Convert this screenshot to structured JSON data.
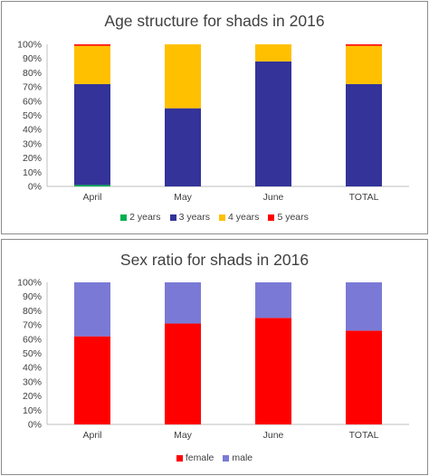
{
  "chart_data": [
    {
      "type": "bar",
      "stacked": true,
      "title": "Age structure for shads in 2016",
      "categories": [
        "April",
        "May",
        "June",
        "TOTAL"
      ],
      "ylim": [
        0,
        100
      ],
      "yticks": [
        "0%",
        "10%",
        "20%",
        "30%",
        "40%",
        "50%",
        "60%",
        "70%",
        "80%",
        "90%",
        "100%"
      ],
      "grid": false,
      "legend_position": "bottom",
      "series": [
        {
          "name": "2 years",
          "color": "#00b050",
          "values": [
            1,
            0,
            0,
            0
          ]
        },
        {
          "name": "3 years",
          "color": "#333399",
          "values": [
            71,
            55,
            88,
            72
          ]
        },
        {
          "name": "4 years",
          "color": "#ffc000",
          "values": [
            27,
            45,
            12,
            27
          ]
        },
        {
          "name": "5 years",
          "color": "#ff0000",
          "values": [
            1,
            0,
            0,
            1
          ]
        }
      ]
    },
    {
      "type": "bar",
      "stacked": true,
      "title": "Sex ratio for shads in 2016",
      "categories": [
        "April",
        "May",
        "June",
        "TOTAL"
      ],
      "ylim": [
        0,
        100
      ],
      "yticks": [
        "0%",
        "10%",
        "20%",
        "30%",
        "40%",
        "50%",
        "60%",
        "70%",
        "80%",
        "90%",
        "100%"
      ],
      "grid": false,
      "legend_position": "bottom",
      "series": [
        {
          "name": "female",
          "color": "#ff0000",
          "values": [
            62,
            71,
            75,
            66
          ]
        },
        {
          "name": "male",
          "color": "#7a7ad6",
          "values": [
            38,
            29,
            25,
            34
          ]
        }
      ]
    }
  ]
}
